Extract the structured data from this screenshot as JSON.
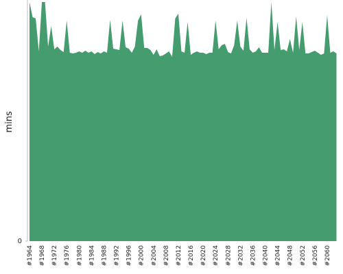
{
  "chart_data": {
    "type": "area",
    "y_label": "mins",
    "color": "#459c6e",
    "categories": [
      "#1964",
      null,
      null,
      null,
      "#1968",
      null,
      null,
      null,
      "#1972",
      null,
      null,
      null,
      "#1976",
      null,
      null,
      null,
      "#1980",
      null,
      null,
      null,
      "#1984",
      null,
      null,
      null,
      "#1988",
      null,
      null,
      null,
      "#1992",
      null,
      null,
      null,
      "#1996",
      null,
      null,
      null,
      "#2000",
      null,
      null,
      null,
      "#2004",
      null,
      null,
      null,
      "#2008",
      null,
      null,
      null,
      "#2012",
      null,
      null,
      null,
      "#2016",
      null,
      null,
      null,
      "#2020",
      null,
      null,
      null,
      "#2024",
      null,
      null,
      null,
      "#2028",
      null,
      null,
      null,
      "#2032",
      null,
      null,
      null,
      "#2036",
      null,
      null,
      null,
      "#2040",
      null,
      null,
      null,
      "#2044",
      null,
      null,
      null,
      "#2048",
      null,
      null,
      null,
      "#2052",
      null,
      null,
      null,
      "#2056",
      null,
      null,
      null,
      "#2060",
      null,
      null,
      null
    ],
    "values": [
      349,
      327,
      325,
      277,
      349,
      349,
      284,
      314,
      280,
      284,
      279,
      276,
      322,
      275,
      274,
      275,
      277,
      275,
      278,
      275,
      277,
      273,
      276,
      274,
      277,
      275,
      323,
      281,
      280,
      279,
      322,
      283,
      281,
      275,
      284,
      322,
      331,
      282,
      282,
      279,
      272,
      280,
      270,
      271,
      274,
      277,
      269,
      325,
      332,
      277,
      275,
      320,
      272,
      275,
      277,
      275,
      275,
      273,
      275,
      275,
      322,
      280,
      286,
      288,
      276,
      274,
      286,
      322,
      284,
      278,
      326,
      280,
      275,
      277,
      283,
      275,
      275,
      275,
      349,
      279,
      320,
      279,
      280,
      277,
      295,
      275,
      328,
      279,
      320,
      274,
      274,
      276,
      278,
      275,
      272,
      274,
      330,
      275,
      277,
      274
    ],
    "ylim": [
      0,
      350
    ],
    "yticks": [
      0
    ]
  }
}
